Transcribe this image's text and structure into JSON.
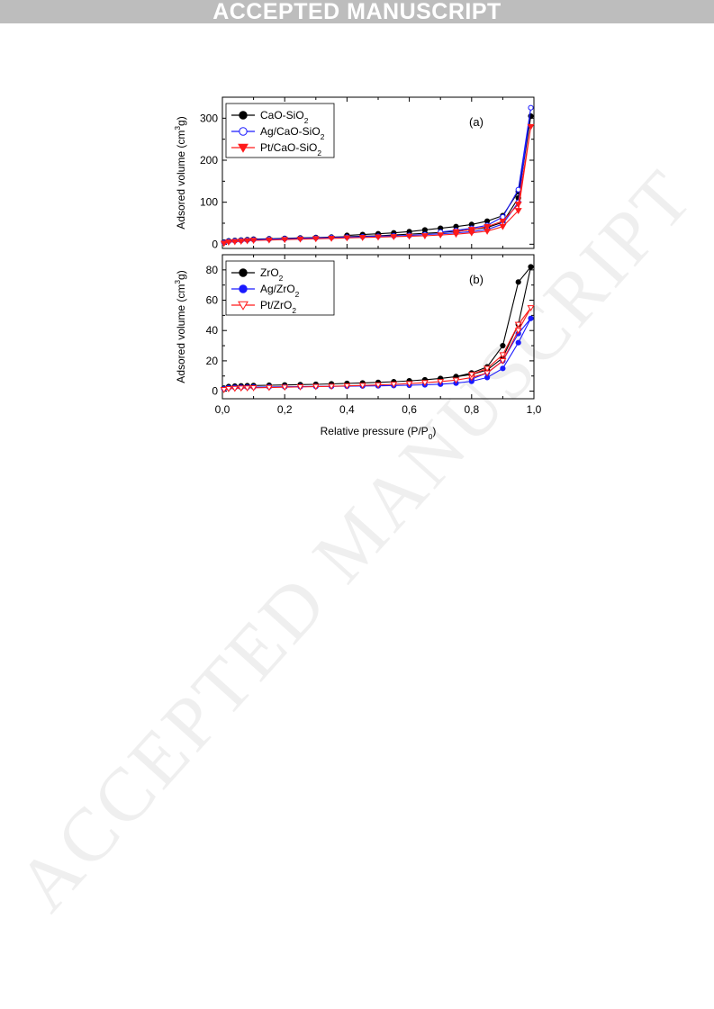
{
  "header": {
    "banner": "ACCEPTED MANUSCRIPT"
  },
  "watermark": "ACCEPTED MANUSCRIPT",
  "colors": {
    "black": "#000000",
    "blue": "#1a1aff",
    "red": "#ff1a1a",
    "banner": "#bdbdbd"
  },
  "chart_data": [
    {
      "type": "line",
      "panel_label": "(a)",
      "ylabel": "Adsored volume (cm³g)",
      "xlim": [
        0,
        1.0
      ],
      "ylim": [
        -10,
        350
      ],
      "yticks": [
        0,
        100,
        200,
        300
      ],
      "grid": false,
      "legend": "top-left",
      "series": [
        {
          "name": "CaO-SiO₂",
          "color": "#000000",
          "marker": "filled-circle",
          "x": [
            0.005,
            0.02,
            0.04,
            0.06,
            0.08,
            0.1,
            0.15,
            0.2,
            0.25,
            0.3,
            0.35,
            0.4,
            0.45,
            0.5,
            0.55,
            0.6,
            0.65,
            0.7,
            0.75,
            0.8,
            0.85,
            0.9,
            0.95,
            0.99,
            0.95,
            0.9,
            0.85,
            0.8,
            0.75,
            0.7,
            0.65,
            0.6,
            0.55,
            0.5,
            0.45,
            0.4
          ],
          "y": [
            5,
            8,
            9,
            10,
            11,
            12,
            13,
            14,
            15,
            16,
            17,
            18,
            19,
            20,
            22,
            24,
            26,
            28,
            31,
            35,
            40,
            52,
            110,
            305,
            125,
            68,
            55,
            47,
            42,
            38,
            34,
            30,
            27,
            25,
            23,
            21
          ]
        },
        {
          "name": "Ag/CaO-SiO₂",
          "color": "#1a1aff",
          "marker": "open-circle",
          "x": [
            0.005,
            0.02,
            0.04,
            0.06,
            0.08,
            0.1,
            0.15,
            0.2,
            0.25,
            0.3,
            0.35,
            0.4,
            0.45,
            0.5,
            0.55,
            0.6,
            0.65,
            0.7,
            0.75,
            0.8,
            0.85,
            0.9,
            0.95,
            0.99,
            0.95,
            0.9,
            0.85,
            0.8,
            0.75,
            0.7
          ],
          "y": [
            4,
            7,
            8,
            9,
            10,
            11,
            12,
            13,
            14,
            15,
            16,
            17,
            18,
            19,
            20,
            21,
            23,
            25,
            27,
            30,
            35,
            48,
            100,
            325,
            130,
            65,
            45,
            38,
            33,
            29
          ]
        },
        {
          "name": "Pt/CaO-SiO₂",
          "color": "#ff1a1a",
          "marker": "filled-triangle-down",
          "x": [
            0.005,
            0.02,
            0.04,
            0.06,
            0.08,
            0.1,
            0.15,
            0.2,
            0.25,
            0.3,
            0.35,
            0.4,
            0.45,
            0.5,
            0.55,
            0.6,
            0.65,
            0.7,
            0.75,
            0.8,
            0.85,
            0.9,
            0.95,
            0.99,
            0.95,
            0.9,
            0.85,
            0.8,
            0.75
          ],
          "y": [
            2,
            5,
            6,
            7,
            8,
            9,
            10,
            11,
            12,
            13,
            14,
            15,
            16,
            17,
            18,
            19,
            20,
            22,
            24,
            27,
            31,
            42,
            80,
            280,
            95,
            55,
            42,
            35,
            30
          ]
        }
      ]
    },
    {
      "type": "line",
      "panel_label": "(b)",
      "xlabel": "Relative pressure (P/P₀)",
      "ylabel": "Adsored volume (cm³g)",
      "xlim": [
        0,
        1.0
      ],
      "ylim": [
        -5,
        90
      ],
      "yticks": [
        0,
        20,
        40,
        60,
        80
      ],
      "xticks": [
        0,
        0.2,
        0.4,
        0.6,
        0.8,
        1.0
      ],
      "xtick_labels": [
        "0,0",
        "0,2",
        "0,4",
        "0,6",
        "0,8",
        "1,0"
      ],
      "grid": false,
      "legend": "top-left",
      "series": [
        {
          "name": "ZrO₂",
          "color": "#000000",
          "marker": "filled-circle",
          "x": [
            0.005,
            0.02,
            0.04,
            0.06,
            0.08,
            0.1,
            0.15,
            0.2,
            0.25,
            0.3,
            0.35,
            0.4,
            0.45,
            0.5,
            0.55,
            0.6,
            0.65,
            0.7,
            0.75,
            0.8,
            0.85,
            0.9,
            0.95,
            0.99,
            0.95,
            0.9,
            0.85,
            0.8,
            0.75
          ],
          "y": [
            2,
            3,
            3.3,
            3.5,
            3.6,
            3.7,
            3.9,
            4.1,
            4.3,
            4.5,
            4.8,
            5.1,
            5.4,
            5.8,
            6.2,
            6.8,
            7.5,
            8.4,
            9.6,
            12,
            16,
            30,
            72,
            82,
            44,
            22,
            14,
            11,
            9.5
          ]
        },
        {
          "name": "Ag/ZrO₂",
          "color": "#1a1aff",
          "marker": "filled-circle",
          "x": [
            0.005,
            0.02,
            0.04,
            0.06,
            0.08,
            0.1,
            0.15,
            0.2,
            0.25,
            0.3,
            0.35,
            0.4,
            0.45,
            0.5,
            0.55,
            0.6,
            0.65,
            0.7,
            0.75,
            0.8,
            0.85,
            0.9,
            0.95,
            0.99,
            0.95,
            0.9,
            0.85,
            0.8
          ],
          "y": [
            1.5,
            2.2,
            2.4,
            2.5,
            2.6,
            2.7,
            2.8,
            2.9,
            3.0,
            3.1,
            3.2,
            3.3,
            3.4,
            3.5,
            3.7,
            3.9,
            4.2,
            4.6,
            5.3,
            6.5,
            9,
            15,
            32,
            48,
            38,
            20,
            12,
            8
          ]
        },
        {
          "name": "Pt/ZrO₂",
          "color": "#ff1a1a",
          "marker": "open-triangle-down",
          "x": [
            0.005,
            0.02,
            0.04,
            0.06,
            0.08,
            0.1,
            0.15,
            0.2,
            0.25,
            0.3,
            0.35,
            0.4,
            0.45,
            0.5,
            0.55,
            0.6,
            0.65,
            0.7,
            0.75,
            0.8,
            0.85,
            0.9,
            0.95,
            0.99,
            0.95,
            0.9,
            0.85,
            0.8
          ],
          "y": [
            1.0,
            1.6,
            1.8,
            2.0,
            2.1,
            2.2,
            2.4,
            2.6,
            2.8,
            3.0,
            3.2,
            3.5,
            3.8,
            4.1,
            4.5,
            5.0,
            5.6,
            6.3,
            7.3,
            9,
            12,
            20,
            40,
            55,
            44,
            24,
            15,
            11
          ]
        }
      ]
    }
  ]
}
